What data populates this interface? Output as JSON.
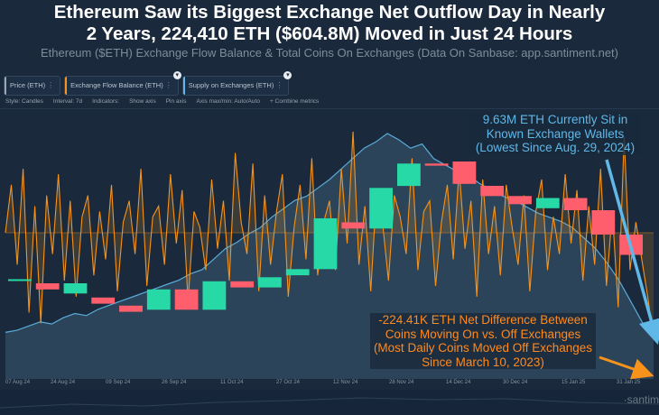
{
  "headline": {
    "line1": "Ethereum Saw its Biggest Exchange Net Outflow Day in Nearly",
    "line2": "2 Years, 224,410 ETH ($604.8M) Moved in Just 24 Hours"
  },
  "subtitle": "Ethereum ($ETH) Exchange Flow Balance & Total Coins On Exchanges (Data On Sanbase: app.santiment.net)",
  "tabs": [
    {
      "label": "Price (ETH)",
      "color": "#9aa6b2"
    },
    {
      "label": "Exchange Flow Balance (ETH)",
      "color": "#f7931a"
    },
    {
      "label": "Supply on Exchanges (ETH)",
      "color": "#5fb8e8"
    }
  ],
  "tab_more_glyph": "⋮",
  "tab_pin_glyph": "▾",
  "toolbar": {
    "style": "Style: Candles",
    "interval": "Interval: 7d",
    "indicators": "Indicators:",
    "show_axis": "Show axis",
    "pin_axis": "Pin axis",
    "axis_max_min": "Axis max/min: Auto/Auto",
    "combine": "+ Combine metrics"
  },
  "annotations": {
    "supply": "9.63M ETH Currently Sit in Known Exchange Wallets (Lowest Since Aug. 29, 2024)",
    "outflow": "-224.41K ETH Net Difference Between Coins Moving On vs. Off Exchanges (Most Daily Coins Moved Off Exchanges Since March 10, 2023)"
  },
  "watermark": "·santim",
  "colors": {
    "background": "#1a2a3c",
    "up_candle": "#26d9a6",
    "down_candle": "#ff5f6d",
    "flow_line": "#f7931a",
    "supply_line": "#5fb8e8",
    "supply_fill": "#4a6f8a",
    "outflow_arrow": "#f7931a",
    "supply_arrow": "#5fb8e8"
  },
  "chart_data": {
    "type": "candlestick+line+area",
    "x_tick_labels": [
      "07 Aug 24",
      "24 Aug 24",
      "09 Sep 24",
      "26 Sep 24",
      "11 Oct 24",
      "27 Oct 24",
      "12 Nov 24",
      "28 Nov 24",
      "14 Dec 24",
      "30 Dec 24",
      "15 Jan 25",
      "31 Jan 25"
    ],
    "price_candles": [
      {
        "o": 0.38,
        "c": 0.38
      },
      {
        "o": 0.36,
        "c": 0.33
      },
      {
        "o": 0.31,
        "c": 0.36
      },
      {
        "o": 0.29,
        "c": 0.26
      },
      {
        "o": 0.25,
        "c": 0.22
      },
      {
        "o": 0.23,
        "c": 0.33
      },
      {
        "o": 0.33,
        "c": 0.23
      },
      {
        "o": 0.23,
        "c": 0.37
      },
      {
        "o": 0.37,
        "c": 0.34
      },
      {
        "o": 0.34,
        "c": 0.39
      },
      {
        "o": 0.4,
        "c": 0.43
      },
      {
        "o": 0.43,
        "c": 0.68
      },
      {
        "o": 0.66,
        "c": 0.63
      },
      {
        "o": 0.63,
        "c": 0.83
      },
      {
        "o": 0.84,
        "c": 0.95
      },
      {
        "o": 0.95,
        "c": 0.94
      },
      {
        "o": 0.96,
        "c": 0.85
      },
      {
        "o": 0.84,
        "c": 0.79
      },
      {
        "o": 0.79,
        "c": 0.75
      },
      {
        "o": 0.73,
        "c": 0.78
      },
      {
        "o": 0.78,
        "c": 0.72
      },
      {
        "o": 0.72,
        "c": 0.6
      },
      {
        "o": 0.6,
        "c": 0.5
      }
    ],
    "exchange_flow_balance": [
      0.0,
      0.45,
      -0.3,
      0.6,
      -0.75,
      0.25,
      -0.85,
      0.35,
      -0.2,
      0.55,
      -0.45,
      0.3,
      -0.6,
      0.15,
      0.35,
      -0.4,
      0.2,
      -0.25,
      0.45,
      -0.55,
      0.1,
      0.3,
      -0.2,
      0.6,
      -0.5,
      0.15,
      0.25,
      -0.3,
      0.55,
      -0.1,
      0.4,
      -0.65,
      0.2,
      0.05,
      -0.35,
      0.5,
      -0.15,
      0.3,
      -0.45,
      0.75,
      0.1,
      -0.2,
      0.65,
      -0.55,
      0.35,
      -0.3,
      0.2,
      0.55,
      -0.6,
      0.05,
      0.45,
      -0.25,
      0.7,
      -0.4,
      0.1,
      0.3,
      -0.35,
      0.6,
      -0.1,
      0.95,
      -0.3,
      0.25,
      -0.55,
      0.4,
      0.1,
      -0.45,
      0.35,
      0.15,
      -0.2,
      0.7,
      -0.35,
      0.2,
      0.3,
      -0.5,
      0.1,
      0.45,
      -0.25,
      0.6,
      -0.15,
      0.3,
      -0.6,
      0.5,
      -0.2,
      0.25,
      -0.4,
      0.45,
      0.05,
      -0.3,
      0.35,
      -0.55,
      0.2,
      0.5,
      -0.35,
      0.15,
      -0.2,
      0.55,
      -0.1,
      0.4,
      -0.45,
      0.25,
      -0.3,
      0.6,
      -0.5,
      0.2,
      -0.7,
      0.9,
      -0.35,
      0.1,
      -0.25,
      -0.6,
      -1.0
    ],
    "supply_on_exchanges": [
      0.05,
      0.06,
      0.08,
      0.1,
      0.09,
      0.12,
      0.14,
      0.13,
      0.16,
      0.18,
      0.2,
      0.22,
      0.24,
      0.26,
      0.28,
      0.3,
      0.33,
      0.35,
      0.4,
      0.45,
      0.48,
      0.52,
      0.55,
      0.6,
      0.64,
      0.68,
      0.7,
      0.74,
      0.78,
      0.83,
      0.88,
      0.93,
      0.96,
      1.0,
      0.97,
      0.93,
      0.95,
      0.88,
      0.85,
      0.82,
      0.8,
      0.76,
      0.73,
      0.7,
      0.68,
      0.65,
      0.62,
      0.6,
      0.58,
      0.55,
      0.5,
      0.45,
      0.38,
      0.3,
      0.2,
      0.1,
      0.02
    ],
    "y_axes": "hidden",
    "grid": false,
    "legend_placement": "top-left tabs",
    "price_axis_range": [
      0,
      1
    ],
    "flow_axis_range": [
      -1,
      1
    ],
    "supply_axis_range": [
      0,
      1
    ]
  }
}
